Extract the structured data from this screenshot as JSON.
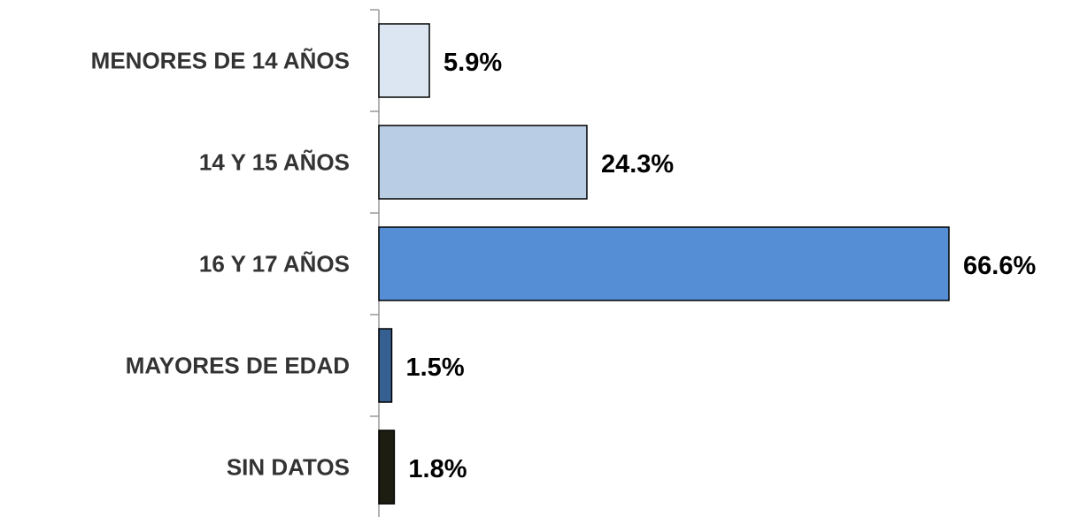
{
  "chart_data": {
    "type": "bar",
    "orientation": "horizontal",
    "categories": [
      "MENORES DE 14 AÑOS",
      "14 Y 15 AÑOS",
      "16 Y 17 AÑOS",
      "MAYORES DE EDAD",
      "SIN DATOS"
    ],
    "values": [
      5.9,
      24.3,
      66.6,
      1.5,
      1.8
    ],
    "value_labels": [
      "5.9%",
      "24.3%",
      "66.6%",
      "1.5%",
      "1.8%"
    ],
    "colors": [
      "#dce6f2",
      "#b9cde5",
      "#558ed5",
      "#376092",
      "#1d1d12"
    ]
  }
}
